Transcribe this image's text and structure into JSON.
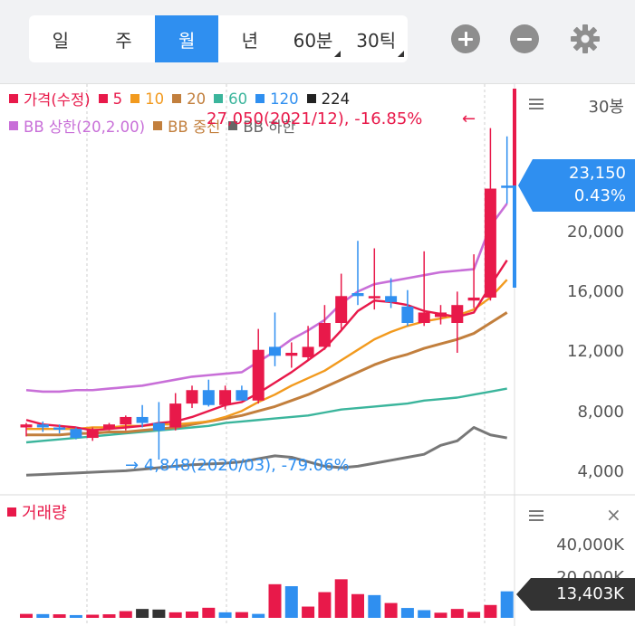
{
  "tabs": [
    {
      "label": "일",
      "active": false,
      "dropdown": false
    },
    {
      "label": "주",
      "active": false,
      "dropdown": false
    },
    {
      "label": "월",
      "active": true,
      "dropdown": false
    },
    {
      "label": "년",
      "active": false,
      "dropdown": false
    },
    {
      "label": "60분",
      "active": false,
      "dropdown": true
    },
    {
      "label": "30틱",
      "active": false,
      "dropdown": true
    }
  ],
  "toolbar": {
    "zoom_in_icon": "plus-circle-icon",
    "zoom_out_icon": "minus-circle-icon",
    "settings_icon": "gear-icon"
  },
  "legend_line1": [
    {
      "label": "가격(수정)",
      "color": "#e8194a"
    },
    {
      "label": "5",
      "color": "#e8194a"
    },
    {
      "label": "10",
      "color": "#f29a1e"
    },
    {
      "label": "20",
      "color": "#c27f3d"
    },
    {
      "label": "60",
      "color": "#3bb59c"
    },
    {
      "label": "120",
      "color": "#2f8ff0"
    },
    {
      "label": "224",
      "color": "#222222"
    }
  ],
  "legend_line2": [
    {
      "label": "BB 상한(20,2.00)",
      "color": "#c86fd8"
    },
    {
      "label": "BB 중선",
      "color": "#c27f3d"
    },
    {
      "label": "BB 하한",
      "color": "#666666"
    }
  ],
  "price_panel": {
    "bars_label": "30봉",
    "y_labels": [
      "20,000",
      "16,000",
      "12,000",
      "8,000",
      "4,000"
    ],
    "current_price": "23,150",
    "current_change": "0.43%",
    "high_annotation": "27,050(2021/12), -16.85%",
    "high_arrow": "←",
    "low_annotation": "4,848(2020/03), -79.06%",
    "low_arrow": "→"
  },
  "volume_panel": {
    "title": "거래량",
    "title_color": "#e8194a",
    "y_labels": [
      "40,000K",
      "20,000K"
    ],
    "current_volume": "13,403K",
    "close_icon": "×"
  },
  "colors": {
    "up": "#e8194a",
    "down": "#2f8ff0",
    "neutral": "#333333",
    "accent": "#2f8ff0"
  },
  "chart_data": {
    "type": "candlestick",
    "interval": "monthly",
    "y_unit": "KRW",
    "ylim": [
      3000,
      28000
    ],
    "candles": [
      {
        "o": 7000,
        "h": 7300,
        "l": 6400,
        "c": 7200
      },
      {
        "o": 7200,
        "h": 7400,
        "l": 6700,
        "c": 7000
      },
      {
        "o": 7000,
        "h": 7200,
        "l": 6600,
        "c": 6900
      },
      {
        "o": 6900,
        "h": 7000,
        "l": 6200,
        "c": 6300
      },
      {
        "o": 6300,
        "h": 7000,
        "l": 6100,
        "c": 6900
      },
      {
        "o": 6900,
        "h": 7300,
        "l": 6800,
        "c": 7200
      },
      {
        "o": 7200,
        "h": 7800,
        "l": 6800,
        "c": 7700
      },
      {
        "o": 7700,
        "h": 8500,
        "l": 7000,
        "c": 7300
      },
      {
        "o": 7300,
        "h": 8700,
        "l": 4848,
        "c": 6800
      },
      {
        "o": 7000,
        "h": 9300,
        "l": 6800,
        "c": 8600
      },
      {
        "o": 8600,
        "h": 9800,
        "l": 8300,
        "c": 9500
      },
      {
        "o": 9500,
        "h": 10200,
        "l": 8400,
        "c": 8500
      },
      {
        "o": 8500,
        "h": 9800,
        "l": 8200,
        "c": 9500
      },
      {
        "o": 9500,
        "h": 9800,
        "l": 8800,
        "c": 8800
      },
      {
        "o": 8800,
        "h": 13600,
        "l": 8600,
        "c": 12200
      },
      {
        "o": 12400,
        "h": 14700,
        "l": 11100,
        "c": 11800
      },
      {
        "o": 11800,
        "h": 12700,
        "l": 11000,
        "c": 12000
      },
      {
        "o": 11700,
        "h": 13800,
        "l": 11500,
        "c": 12400
      },
      {
        "o": 12400,
        "h": 15200,
        "l": 12200,
        "c": 14000
      },
      {
        "o": 14000,
        "h": 17300,
        "l": 13600,
        "c": 15800
      },
      {
        "o": 16000,
        "h": 19500,
        "l": 15200,
        "c": 15800
      },
      {
        "o": 15800,
        "h": 19000,
        "l": 14900,
        "c": 15800
      },
      {
        "o": 15800,
        "h": 17000,
        "l": 15000,
        "c": 15400
      },
      {
        "o": 15100,
        "h": 16200,
        "l": 13800,
        "c": 14000
      },
      {
        "o": 14000,
        "h": 18800,
        "l": 13800,
        "c": 14700
      },
      {
        "o": 14400,
        "h": 15200,
        "l": 13900,
        "c": 14700
      },
      {
        "o": 14000,
        "h": 16100,
        "l": 12000,
        "c": 15200
      },
      {
        "o": 15500,
        "h": 18600,
        "l": 15000,
        "c": 15700
      },
      {
        "o": 15700,
        "h": 27050,
        "l": 15500,
        "c": 23000
      },
      {
        "o": 23200,
        "h": 26500,
        "l": 22000,
        "c": 23150
      }
    ],
    "ma5": [
      7500,
      7200,
      7100,
      7000,
      6800,
      6900,
      7000,
      7100,
      7300,
      7400,
      7700,
      8100,
      8500,
      8700,
      9300,
      10000,
      10700,
      11500,
      12300,
      13500,
      14800,
      15500,
      15400,
      15200,
      14800,
      14600,
      14400,
      14700,
      16500,
      18200
    ],
    "ma10": [
      6900,
      6900,
      6900,
      6900,
      7000,
      7000,
      7100,
      7100,
      7200,
      7200,
      7300,
      7400,
      7700,
      8100,
      8700,
      9200,
      9800,
      10300,
      10800,
      11500,
      12200,
      12900,
      13400,
      13800,
      14100,
      14300,
      14500,
      14900,
      15700,
      16900
    ],
    "ma20": [
      6500,
      6500,
      6500,
      6600,
      6600,
      6700,
      6700,
      6800,
      6900,
      7000,
      7200,
      7400,
      7600,
      7800,
      8100,
      8400,
      8800,
      9200,
      9700,
      10200,
      10700,
      11200,
      11600,
      11900,
      12300,
      12600,
      12900,
      13300,
      14000,
      14700
    ],
    "ma60": [
      6000,
      6100,
      6200,
      6300,
      6400,
      6500,
      6600,
      6700,
      6800,
      6900,
      7000,
      7100,
      7300,
      7400,
      7500,
      7600,
      7700,
      7800,
      8000,
      8200,
      8300,
      8400,
      8500,
      8600,
      8800,
      8900,
      9000,
      9200,
      9400,
      9600
    ],
    "ma224": [
      3800,
      3850,
      3900,
      3950,
      4000,
      4050,
      4100,
      4200,
      4300,
      4400,
      4500,
      4550,
      4600,
      4700,
      4900,
      5100,
      5000,
      4700,
      4400,
      4300,
      4400,
      4600,
      4800,
      5000,
      5200,
      5800,
      6100,
      7000,
      6500,
      6300
    ],
    "bb_upper": [
      9500,
      9400,
      9400,
      9500,
      9500,
      9600,
      9700,
      9800,
      10000,
      10200,
      10400,
      10500,
      10600,
      10700,
      11400,
      12100,
      12900,
      13500,
      14200,
      15300,
      16100,
      16600,
      16800,
      17000,
      17200,
      17400,
      17500,
      17600,
      20500,
      22000
    ],
    "bb_middle": [
      6500,
      6500,
      6500,
      6600,
      6600,
      6700,
      6700,
      6800,
      6900,
      7000,
      7200,
      7400,
      7600,
      7800,
      8100,
      8400,
      8800,
      9200,
      9700,
      10200,
      10700,
      11200,
      11600,
      11900,
      12300,
      12600,
      12900,
      13300,
      14000,
      14700
    ],
    "bb_lower": [
      3800,
      3850,
      3900,
      3950,
      4000,
      4050,
      4100,
      4200,
      4300,
      4400,
      4500,
      4550,
      4600,
      4700,
      4900,
      5100,
      5000,
      4700,
      4400,
      4300,
      4400,
      4600,
      4800,
      5000,
      5200,
      5800,
      6100,
      7000,
      6500,
      6300
    ],
    "volume_k": [
      2000,
      1900,
      1800,
      1400,
      1600,
      1800,
      3400,
      4500,
      4200,
      2800,
      3200,
      5100,
      2800,
      2900,
      2000,
      17000,
      16000,
      5700,
      13000,
      19500,
      12000,
      11500,
      7500,
      5000,
      3900,
      2600,
      4500,
      3000,
      6500,
      13403
    ],
    "volume_colors": [
      "up",
      "down",
      "up",
      "down",
      "up",
      "up",
      "up",
      "neutral",
      "neutral",
      "up",
      "up",
      "up",
      "down",
      "up",
      "down",
      "up",
      "down",
      "up",
      "up",
      "up",
      "up",
      "down",
      "up",
      "down",
      "down",
      "up",
      "up",
      "up",
      "up",
      "down"
    ],
    "vol_ylim": [
      0,
      48000
    ]
  }
}
